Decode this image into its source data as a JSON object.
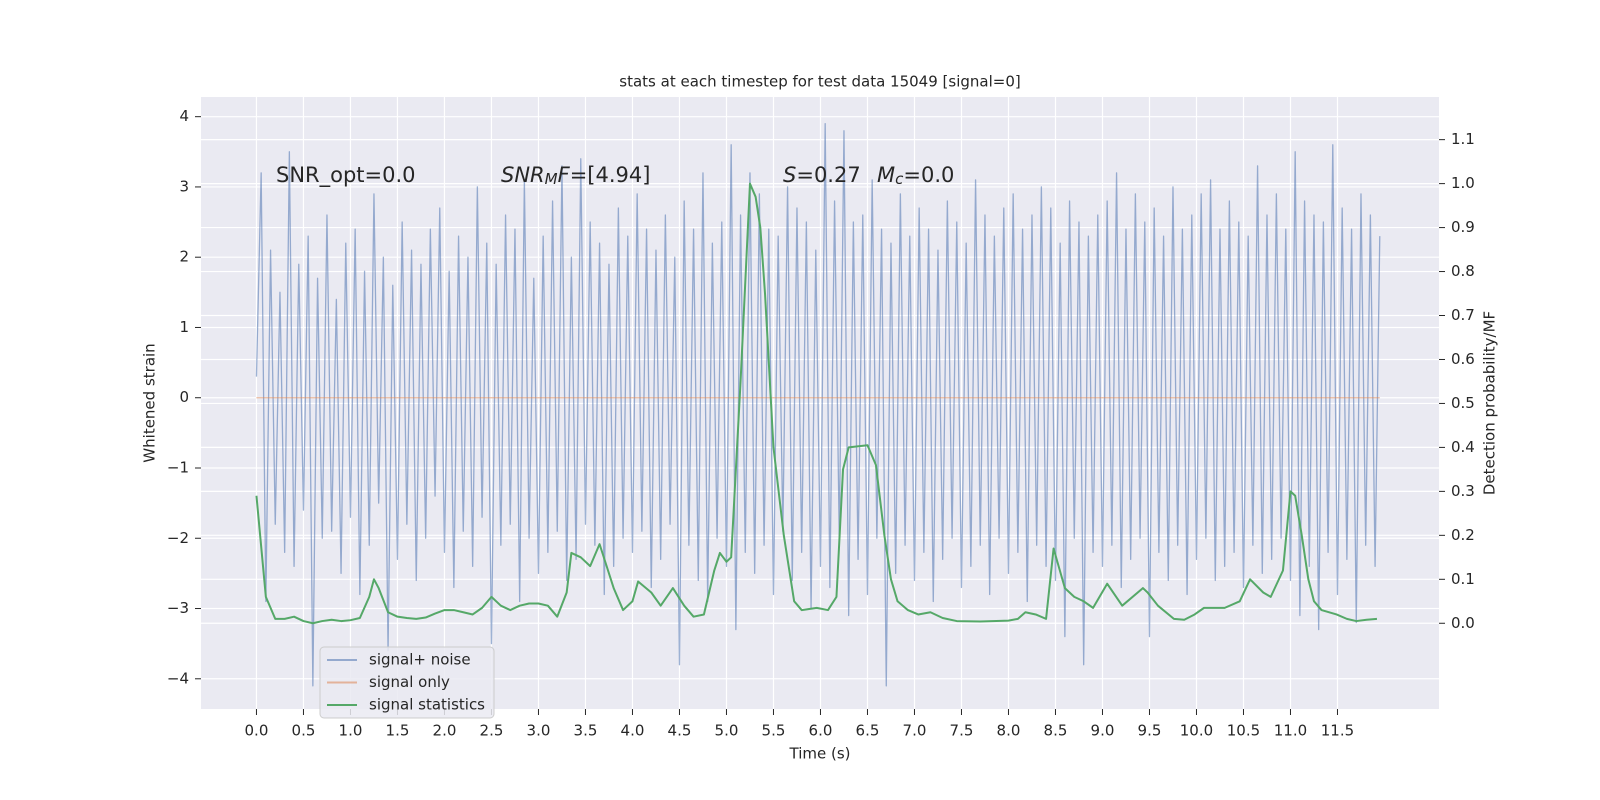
{
  "chart_data": {
    "type": "line",
    "title": "stats at each timestep for test data 15049 [signal=0]",
    "xlabel": "Time (s)",
    "ylabel": "Whitened strain",
    "y2label": "Detection probability/MF",
    "xlim": [
      -0.59,
      12.58
    ],
    "ylim": [
      -4.43,
      4.28
    ],
    "y2lim": [
      -0.195,
      1.197
    ],
    "xticks": [
      {
        "value": 0,
        "label": "0.0"
      },
      {
        "value": 0.5,
        "label": "0.5"
      },
      {
        "value": 1,
        "label": "1.0"
      },
      {
        "value": 1.5,
        "label": "1.5"
      },
      {
        "value": 2,
        "label": "2.0"
      },
      {
        "value": 2.5,
        "label": "2.5"
      },
      {
        "value": 3,
        "label": "3.0"
      },
      {
        "value": 3.5,
        "label": "3.5"
      },
      {
        "value": 4,
        "label": "4.0"
      },
      {
        "value": 4.5,
        "label": "4.5"
      },
      {
        "value": 5,
        "label": "5.0"
      },
      {
        "value": 5.5,
        "label": "5.5"
      },
      {
        "value": 6,
        "label": "6.0"
      },
      {
        "value": 6.5,
        "label": "6.5"
      },
      {
        "value": 7,
        "label": "7.0"
      },
      {
        "value": 7.5,
        "label": "7.5"
      },
      {
        "value": 8,
        "label": "8.0"
      },
      {
        "value": 8.5,
        "label": "8.5"
      },
      {
        "value": 9,
        "label": "9.0"
      },
      {
        "value": 9.5,
        "label": "9.5"
      },
      {
        "value": 10,
        "label": "10.0"
      },
      {
        "value": 10.5,
        "label": "10.5"
      },
      {
        "value": 11,
        "label": "11.0"
      },
      {
        "value": 11.5,
        "label": "11.5"
      }
    ],
    "yticks": [
      {
        "value": -4,
        "label": "−4"
      },
      {
        "value": -3,
        "label": "−3"
      },
      {
        "value": -2,
        "label": "−2"
      },
      {
        "value": -1,
        "label": "−1"
      },
      0,
      1,
      2,
      3,
      4
    ],
    "y2ticks": [
      {
        "value": 0,
        "label": "0.0"
      },
      {
        "value": 0.1,
        "label": "0.1"
      },
      {
        "value": 0.2,
        "label": "0.2"
      },
      {
        "value": 0.3,
        "label": "0.3"
      },
      {
        "value": 0.4,
        "label": "0.4"
      },
      {
        "value": 0.5,
        "label": "0.5"
      },
      {
        "value": 0.6,
        "label": "0.6"
      },
      {
        "value": 0.7,
        "label": "0.7"
      },
      {
        "value": 0.8,
        "label": "0.8"
      },
      {
        "value": 0.9,
        "label": "0.9"
      },
      {
        "value": 1.0,
        "label": "1.0"
      },
      {
        "value": 1.1,
        "label": "1.1"
      }
    ],
    "grid": true,
    "legend": "lower left",
    "series": [
      {
        "name": "signal+ noise",
        "color": "#4c72b0",
        "alpha": 0.55,
        "x": [
          0,
          0.05,
          0.1,
          0.15,
          0.2,
          0.25,
          0.3,
          0.35,
          0.4,
          0.45,
          0.5,
          0.55,
          0.6,
          0.65,
          0.7,
          0.75,
          0.8,
          0.85,
          0.9,
          0.95,
          1,
          1.05,
          1.1,
          1.15,
          1.2,
          1.25,
          1.3,
          1.35,
          1.4,
          1.45,
          1.5,
          1.55,
          1.6,
          1.65,
          1.7,
          1.75,
          1.8,
          1.85,
          1.9,
          1.95,
          2,
          2.05,
          2.1,
          2.15,
          2.2,
          2.25,
          2.3,
          2.35,
          2.4,
          2.45,
          2.5,
          2.55,
          2.6,
          2.65,
          2.7,
          2.75,
          2.8,
          2.85,
          2.9,
          2.95,
          3,
          3.05,
          3.1,
          3.15,
          3.2,
          3.25,
          3.3,
          3.35,
          3.4,
          3.45,
          3.5,
          3.55,
          3.6,
          3.65,
          3.7,
          3.75,
          3.8,
          3.85,
          3.9,
          3.95,
          4,
          4.05,
          4.1,
          4.15,
          4.2,
          4.25,
          4.3,
          4.35,
          4.4,
          4.45,
          4.5,
          4.55,
          4.6,
          4.65,
          4.7,
          4.75,
          4.8,
          4.85,
          4.9,
          4.95,
          5,
          5.05,
          5.1,
          5.15,
          5.2,
          5.25,
          5.3,
          5.35,
          5.4,
          5.45,
          5.5,
          5.55,
          5.6,
          5.65,
          5.7,
          5.75,
          5.8,
          5.85,
          5.9,
          5.95,
          6,
          6.05,
          6.1,
          6.15,
          6.2,
          6.25,
          6.3,
          6.35,
          6.4,
          6.45,
          6.5,
          6.55,
          6.6,
          6.65,
          6.7,
          6.75,
          6.8,
          6.85,
          6.9,
          6.95,
          7,
          7.05,
          7.1,
          7.15,
          7.2,
          7.25,
          7.3,
          7.35,
          7.4,
          7.45,
          7.5,
          7.55,
          7.6,
          7.65,
          7.7,
          7.75,
          7.8,
          7.85,
          7.9,
          7.95,
          8,
          8.05,
          8.1,
          8.15,
          8.2,
          8.25,
          8.3,
          8.35,
          8.4,
          8.45,
          8.5,
          8.55,
          8.6,
          8.65,
          8.7,
          8.75,
          8.8,
          8.85,
          8.9,
          8.95,
          9,
          9.05,
          9.1,
          9.15,
          9.2,
          9.25,
          9.3,
          9.35,
          9.4,
          9.45,
          9.5,
          9.55,
          9.6,
          9.65,
          9.7,
          9.75,
          9.8,
          9.85,
          9.9,
          9.95,
          10,
          10.05,
          10.1,
          10.15,
          10.2,
          10.25,
          10.3,
          10.35,
          10.4,
          10.45,
          10.5,
          10.55,
          10.6,
          10.65,
          10.7,
          10.75,
          10.8,
          10.85,
          10.9,
          10.95,
          11,
          11.05,
          11.1,
          11.15,
          11.2,
          11.25,
          11.3,
          11.35,
          11.4,
          11.45,
          11.5,
          11.55,
          11.6,
          11.65,
          11.7,
          11.75,
          11.8,
          11.85,
          11.9,
          11.95
        ],
        "values": [
          0.3,
          3.2,
          -2.9,
          2.1,
          -1.8,
          1.5,
          -2.2,
          3.5,
          -2.4,
          1.9,
          -1.6,
          2.3,
          -4.1,
          1.7,
          -2.0,
          2.6,
          -1.9,
          1.4,
          -2.5,
          2.2,
          -1.7,
          2.4,
          -2.8,
          1.8,
          -2.1,
          2.9,
          -1.5,
          2.0,
          -3.6,
          1.6,
          -2.3,
          2.5,
          -1.8,
          2.1,
          -2.6,
          1.9,
          -2.0,
          2.4,
          -1.4,
          2.7,
          -2.2,
          1.8,
          -2.7,
          2.3,
          -1.9,
          2.0,
          -2.4,
          3.0,
          -1.7,
          2.2,
          -3.5,
          1.9,
          -2.1,
          2.6,
          -1.8,
          2.4,
          -2.9,
          3.1,
          -2.0,
          1.7,
          -2.5,
          2.3,
          -2.2,
          2.8,
          -1.9,
          3.3,
          -2.6,
          2.0,
          -2.3,
          3.4,
          -1.8,
          2.5,
          -2.1,
          2.2,
          -2.8,
          1.9,
          -2.4,
          2.7,
          -2.0,
          2.3,
          -2.2,
          2.9,
          -1.9,
          2.4,
          -2.7,
          2.1,
          -2.3,
          2.6,
          -1.8,
          2.0,
          -3.8,
          2.8,
          -2.1,
          2.4,
          -2.6,
          3.2,
          -2.9,
          2.2,
          -2.0,
          2.5,
          -2.4,
          3.6,
          -3.3,
          2.6,
          -2.2,
          3.2,
          -2.5,
          2.9,
          -2.1,
          2.4,
          -2.8,
          2.3,
          -1.9,
          3.0,
          -2.6,
          2.7,
          -2.2,
          2.5,
          -3.0,
          2.1,
          -2.4,
          3.9,
          -2.7,
          2.8,
          -2.0,
          3.8,
          -3.1,
          2.5,
          -2.3,
          2.6,
          -2.8,
          3.1,
          -2.0,
          2.4,
          -4.1,
          2.2,
          -2.5,
          2.9,
          -2.1,
          2.3,
          -2.6,
          2.7,
          -2.2,
          2.4,
          -2.9,
          2.1,
          -2.3,
          2.8,
          -2.0,
          2.5,
          -2.7,
          2.2,
          -2.4,
          3.1,
          -2.1,
          2.6,
          -2.8,
          2.3,
          -2.0,
          2.7,
          -2.5,
          2.9,
          -2.2,
          2.4,
          -2.9,
          2.6,
          -2.1,
          3.0,
          -2.4,
          2.7,
          -2.6,
          2.2,
          -3.4,
          2.8,
          -2.0,
          2.5,
          -3.8,
          2.3,
          -2.2,
          2.6,
          -2.4,
          2.8,
          -2.1,
          3.2,
          -2.7,
          2.4,
          -2.3,
          2.9,
          -2.0,
          2.5,
          -3.4,
          2.7,
          -2.2,
          2.3,
          -2.6,
          3.0,
          -2.1,
          2.4,
          -2.8,
          2.6,
          -2.3,
          2.9,
          -2.0,
          3.1,
          -2.6,
          2.4,
          -2.4,
          2.8,
          -2.2,
          2.5,
          -2.7,
          2.3,
          -2.1,
          3.3,
          -2.5,
          2.6,
          -2.3,
          2.9,
          -2.0,
          2.4,
          -2.6,
          3.5,
          -3.1,
          2.8,
          -2.4,
          2.6,
          -3.3,
          2.5,
          -2.2,
          3.6,
          -2.8,
          2.7,
          -2.3,
          2.4,
          -3.2,
          2.9,
          -2.1,
          2.6,
          -2.4,
          2.3
        ]
      },
      {
        "name": "signal only",
        "color": "#dd8452",
        "alpha": 0.55,
        "x": [
          0,
          11.95
        ],
        "values": [
          0,
          0
        ]
      },
      {
        "name": "signal statistics",
        "color": "#55a868",
        "alpha": 1,
        "axis": "y2",
        "x": [
          0,
          0.1,
          0.2,
          0.3,
          0.4,
          0.5,
          0.6,
          0.7,
          0.8,
          0.9,
          1.0,
          1.1,
          1.2,
          1.25,
          1.3,
          1.4,
          1.5,
          1.6,
          1.7,
          1.8,
          1.9,
          2.0,
          2.1,
          2.2,
          2.3,
          2.4,
          2.5,
          2.6,
          2.7,
          2.8,
          2.9,
          3.0,
          3.1,
          3.2,
          3.3,
          3.35,
          3.45,
          3.55,
          3.65,
          3.8,
          3.9,
          4.0,
          4.06,
          4.2,
          4.3,
          4.43,
          4.55,
          4.65,
          4.76,
          4.87,
          4.93,
          5.0,
          5.05,
          5.15,
          5.25,
          5.31,
          5.36,
          5.41,
          5.5,
          5.61,
          5.72,
          5.8,
          5.96,
          6.08,
          6.17,
          6.24,
          6.3,
          6.5,
          6.59,
          6.68,
          6.75,
          6.82,
          6.93,
          7.04,
          7.17,
          7.3,
          7.45,
          7.7,
          8.0,
          8.1,
          8.18,
          8.29,
          8.4,
          8.48,
          8.6,
          8.7,
          8.8,
          8.9,
          9.05,
          9.21,
          9.43,
          9.48,
          9.59,
          9.76,
          9.87,
          9.98,
          10.08,
          10.3,
          10.46,
          10.57,
          10.71,
          10.79,
          10.92,
          11.0,
          11.05,
          11.12,
          11.19,
          11.25,
          11.33,
          11.49,
          11.6,
          11.7,
          11.81,
          11.92
        ],
        "values": [
          0.29,
          0.06,
          0.01,
          0.01,
          0.015,
          0.005,
          0,
          0.005,
          0.008,
          0.005,
          0.007,
          0.012,
          0.06,
          0.1,
          0.08,
          0.025,
          0.015,
          0.012,
          0.01,
          0.013,
          0.022,
          0.03,
          0.03,
          0.025,
          0.02,
          0.035,
          0.06,
          0.04,
          0.03,
          0.04,
          0.045,
          0.045,
          0.04,
          0.015,
          0.07,
          0.16,
          0.15,
          0.13,
          0.18,
          0.08,
          0.03,
          0.05,
          0.095,
          0.07,
          0.04,
          0.08,
          0.04,
          0.015,
          0.02,
          0.12,
          0.16,
          0.14,
          0.15,
          0.55,
          1.0,
          0.97,
          0.9,
          0.75,
          0.4,
          0.2,
          0.05,
          0.03,
          0.035,
          0.03,
          0.06,
          0.35,
          0.4,
          0.405,
          0.36,
          0.2,
          0.1,
          0.05,
          0.03,
          0.02,
          0.025,
          0.012,
          0.005,
          0.004,
          0.006,
          0.01,
          0.025,
          0.02,
          0.01,
          0.17,
          0.08,
          0.06,
          0.05,
          0.035,
          0.09,
          0.04,
          0.08,
          0.07,
          0.04,
          0.01,
          0.008,
          0.02,
          0.035,
          0.035,
          0.05,
          0.1,
          0.07,
          0.06,
          0.12,
          0.3,
          0.29,
          0.2,
          0.1,
          0.05,
          0.03,
          0.02,
          0.01,
          0.005,
          0.008,
          0.01
        ]
      }
    ],
    "annotations": [
      {
        "segments": [
          {
            "text": "SNR_opt=0.0"
          }
        ]
      },
      {
        "segments": [
          {
            "text": "SNR",
            "style": "italic"
          },
          {
            "text": "M",
            "style": "italic-sub"
          },
          {
            "text": "F",
            "style": "italic"
          },
          {
            "text": "=[4.94]"
          }
        ]
      },
      {
        "segments": [
          {
            "text": "S",
            "style": "italic"
          },
          {
            "text": "=0.27"
          }
        ]
      },
      {
        "segments": [
          {
            "text": "M",
            "style": "italic"
          },
          {
            "text": "c",
            "style": "italic-sub"
          },
          {
            "text": "=0.0"
          }
        ]
      }
    ]
  }
}
